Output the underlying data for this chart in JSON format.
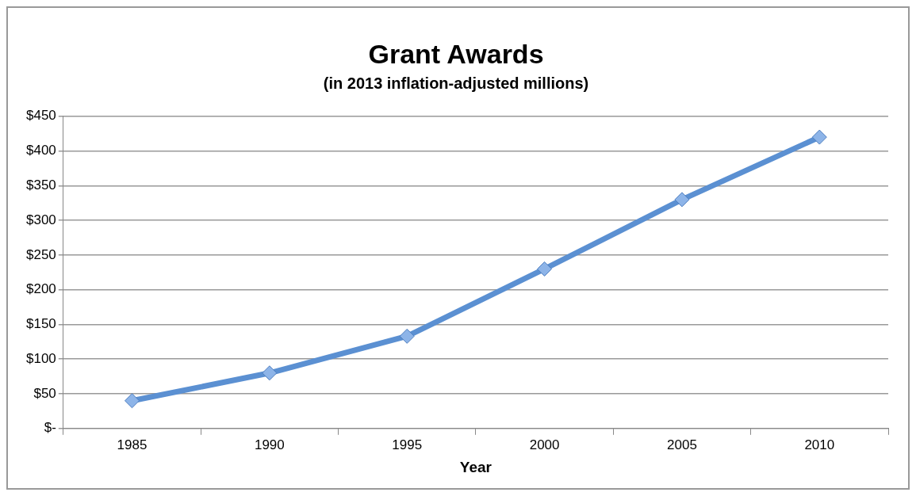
{
  "chart_data": {
    "type": "line",
    "title": "Grant Awards",
    "subtitle": "(in 2013 inflation-adjusted millions)",
    "xlabel": "Year",
    "categories": [
      "1985",
      "1990",
      "1995",
      "2000",
      "2005",
      "2010"
    ],
    "series": [
      {
        "color": "#5b90d2",
        "values": [
          40,
          80,
          133,
          230,
          330,
          420
        ]
      }
    ],
    "ylim": [
      0,
      450
    ],
    "yticks": [
      {
        "value": 0,
        "label": "$-"
      },
      {
        "value": 50,
        "label": "$50"
      },
      {
        "value": 100,
        "label": "$100"
      },
      {
        "value": 150,
        "label": "$150"
      },
      {
        "value": 200,
        "label": "$200"
      },
      {
        "value": 250,
        "label": "$250"
      },
      {
        "value": 300,
        "label": "$300"
      },
      {
        "value": 350,
        "label": "$350"
      },
      {
        "value": 400,
        "label": "$400"
      },
      {
        "value": 450,
        "label": "$450"
      }
    ],
    "grid": "y",
    "legend": false,
    "marker": "diamond",
    "line_style": "solid"
  }
}
